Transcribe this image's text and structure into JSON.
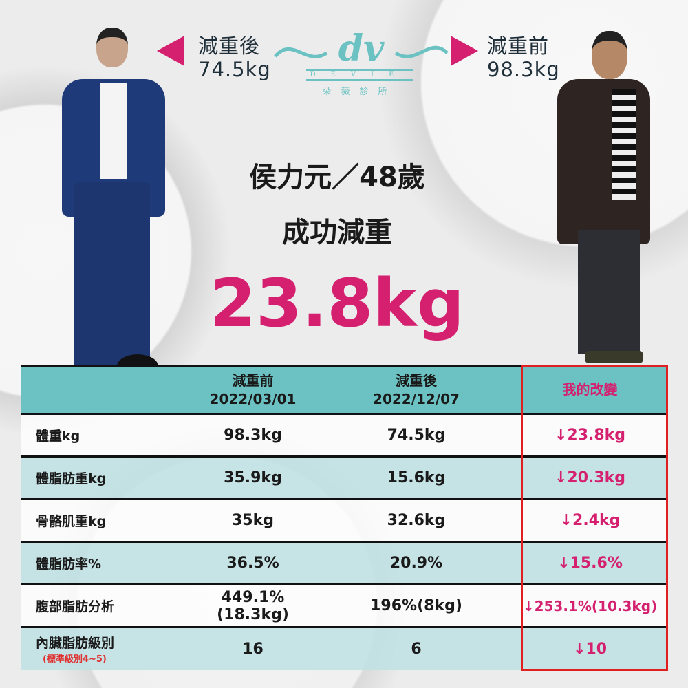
{
  "header": {
    "after_label": "減重後",
    "after_weight": "74.5kg",
    "before_label": "減重前",
    "before_weight": "98.3kg"
  },
  "logo": {
    "mark": "dv",
    "name": "DEVIE",
    "chinese": "朵薇診所",
    "color": "#6cc2c2"
  },
  "headline": {
    "name_age": "侯力元／48歲",
    "subtitle": "成功減重",
    "amount": "23.8kg"
  },
  "colors": {
    "accent": "#d4206f",
    "teal": "#6cc2c2",
    "highlight_border": "#e02020"
  },
  "table": {
    "headers": [
      {
        "line1": "",
        "line2": ""
      },
      {
        "line1": "減重前",
        "line2": "2022/03/01"
      },
      {
        "line1": "減重後",
        "line2": "2022/12/07"
      },
      {
        "line1": "我的改變",
        "line2": ""
      }
    ],
    "rows": [
      {
        "label": "體重kg",
        "before": "98.3kg",
        "after": "74.5kg",
        "change": "↓23.8kg"
      },
      {
        "label": "體脂肪重kg",
        "before": "35.9kg",
        "after": "15.6kg",
        "change": "↓20.3kg"
      },
      {
        "label": "骨骼肌重kg",
        "before": "35kg",
        "after": "32.6kg",
        "change": "↓2.4kg"
      },
      {
        "label": "體脂肪率%",
        "before": "36.5%",
        "after": "20.9%",
        "change": "↓15.6%"
      },
      {
        "label": "腹部脂肪分析",
        "before": "449.1%(18.3kg)",
        "after": "196%(8kg)",
        "change": "↓253.1%(10.3kg)"
      },
      {
        "label": "內臟脂肪級別",
        "note": "(標準級別4~5)",
        "before": "16",
        "after": "6",
        "change": "↓10"
      }
    ]
  }
}
